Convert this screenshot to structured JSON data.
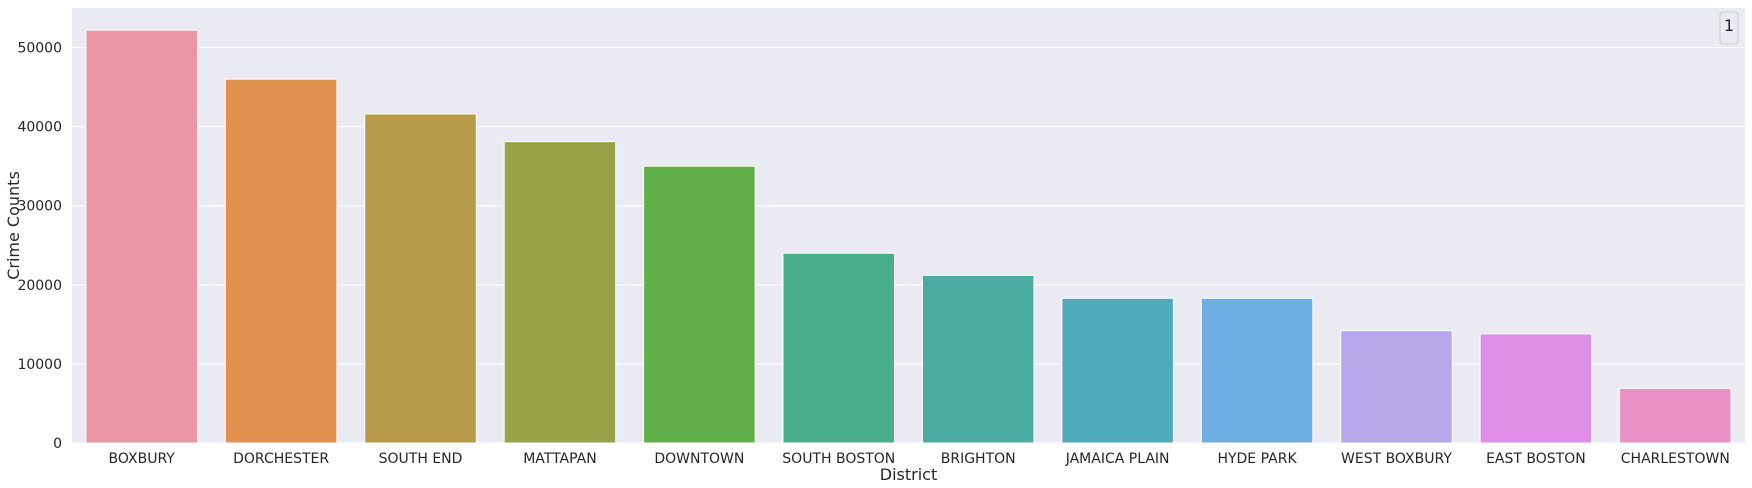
{
  "chart_data": {
    "type": "bar",
    "title": "",
    "xlabel": "District",
    "ylabel": "Crime Counts",
    "categories": [
      "BOXBURY",
      "DORCHESTER",
      "SOUTH END",
      "MATTAPAN",
      "DOWNTOWN",
      "SOUTH BOSTON",
      "BRIGHTON",
      "JAMAICA PLAIN",
      "HYDE PARK",
      "WEST BOXBURY",
      "EAST BOSTON",
      "CHARLESTOWN"
    ],
    "values": [
      52200,
      46000,
      41600,
      38100,
      35000,
      24000,
      21200,
      18300,
      18300,
      14200,
      13800,
      6900
    ],
    "colors": [
      "#ea96a3",
      "#e1914f",
      "#b89b48",
      "#98a348",
      "#60af49",
      "#4bae8a",
      "#4caca2",
      "#4fabbc",
      "#6daee2",
      "#b6a7eb",
      "#df8fe7",
      "#e990c5"
    ],
    "ylim": [
      0,
      55000
    ],
    "yticks": [
      0,
      10000,
      20000,
      30000,
      40000,
      50000
    ],
    "ytick_labels": [
      "0",
      "10000",
      "20000",
      "30000",
      "40000",
      "50000"
    ],
    "grid": true,
    "background": "#eaeaf2",
    "legend": {
      "placement": "top-right",
      "label": "1"
    }
  }
}
